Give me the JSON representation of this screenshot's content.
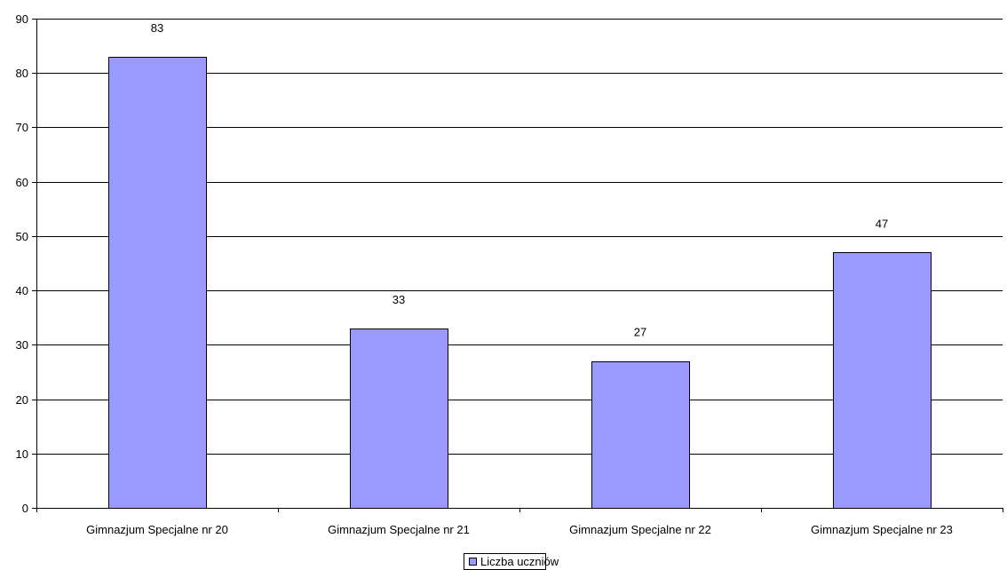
{
  "chart_data": {
    "type": "bar",
    "categories": [
      "Gimnazjum Specjalne nr 20",
      "Gimnazjum Specjalne nr 21",
      "Gimnazjum Specjalne nr 22",
      "Gimnazjum Specjalne nr 23"
    ],
    "series": [
      {
        "name": "Liczba uczniów",
        "values": [
          83,
          33,
          27,
          47
        ],
        "color": "#9999ff"
      }
    ],
    "title": "",
    "xlabel": "",
    "ylabel": "",
    "ylim": [
      0,
      90
    ],
    "yticks": [
      0,
      10,
      20,
      30,
      40,
      50,
      60,
      70,
      80,
      90
    ],
    "grid": true,
    "legend_position": "bottom"
  }
}
